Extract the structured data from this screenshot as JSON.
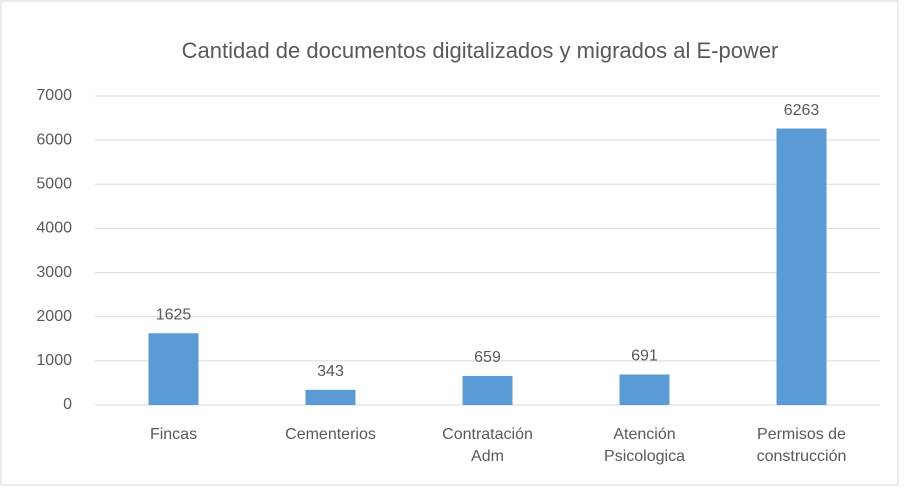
{
  "chart_data": {
    "type": "bar",
    "title": "Cantidad de documentos digitalizados y migrados al E-power",
    "categories": [
      "Fincas",
      "Cementerios",
      "Contratación Adm",
      "Atención Psicologica",
      "Permisos de construcción"
    ],
    "values": [
      1625,
      343,
      659,
      691,
      6263
    ],
    "color": "#5b9bd5",
    "ylim": [
      0,
      7000
    ],
    "yticks": [
      0,
      1000,
      2000,
      3000,
      4000,
      5000,
      6000,
      7000
    ],
    "grid": true
  }
}
